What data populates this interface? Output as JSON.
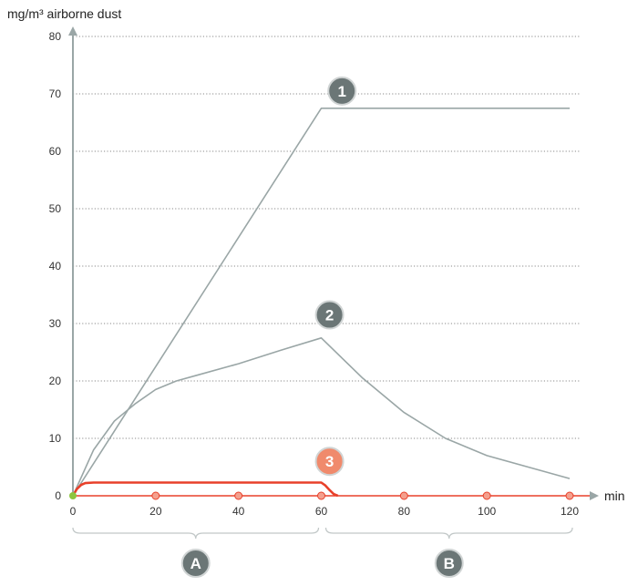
{
  "chart_data": {
    "type": "line",
    "ylabel": "mg/m³ airborne dust",
    "xlabel": "min",
    "xlim": [
      0,
      120
    ],
    "ylim": [
      0,
      80
    ],
    "x_ticks": [
      0,
      20,
      40,
      60,
      80,
      100,
      120
    ],
    "y_ticks": [
      0,
      10,
      20,
      30,
      40,
      50,
      60,
      70,
      80
    ],
    "grid": "horizontal dotted",
    "series": [
      {
        "name": "1",
        "color": "#9aa6a6",
        "points": [
          [
            0,
            0
          ],
          [
            60,
            67.5
          ],
          [
            120,
            67.5
          ]
        ]
      },
      {
        "name": "2",
        "color": "#9aa6a6",
        "points": [
          [
            0,
            0
          ],
          [
            5,
            8
          ],
          [
            10,
            13
          ],
          [
            15,
            16
          ],
          [
            20,
            18.5
          ],
          [
            25,
            20
          ],
          [
            30,
            21
          ],
          [
            40,
            23
          ],
          [
            50,
            25.3
          ],
          [
            60,
            27.5
          ],
          [
            70,
            20.5
          ],
          [
            80,
            14.5
          ],
          [
            90,
            10
          ],
          [
            100,
            7
          ],
          [
            110,
            5
          ],
          [
            120,
            3
          ]
        ]
      },
      {
        "name": "3",
        "color": "#e8402a",
        "points": [
          [
            0,
            0
          ],
          [
            1,
            1.2
          ],
          [
            2,
            1.9
          ],
          [
            3,
            2.2
          ],
          [
            5,
            2.3
          ],
          [
            60,
            2.3
          ],
          [
            61,
            1.8
          ],
          [
            62,
            1.0
          ],
          [
            63,
            0.3
          ],
          [
            64,
            0
          ]
        ]
      }
    ],
    "marker_x": [
      20,
      40,
      60,
      80,
      100,
      120
    ],
    "phases": [
      {
        "label": "A",
        "from": 0,
        "to": 60
      },
      {
        "label": "B",
        "from": 60,
        "to": 120
      }
    ]
  }
}
